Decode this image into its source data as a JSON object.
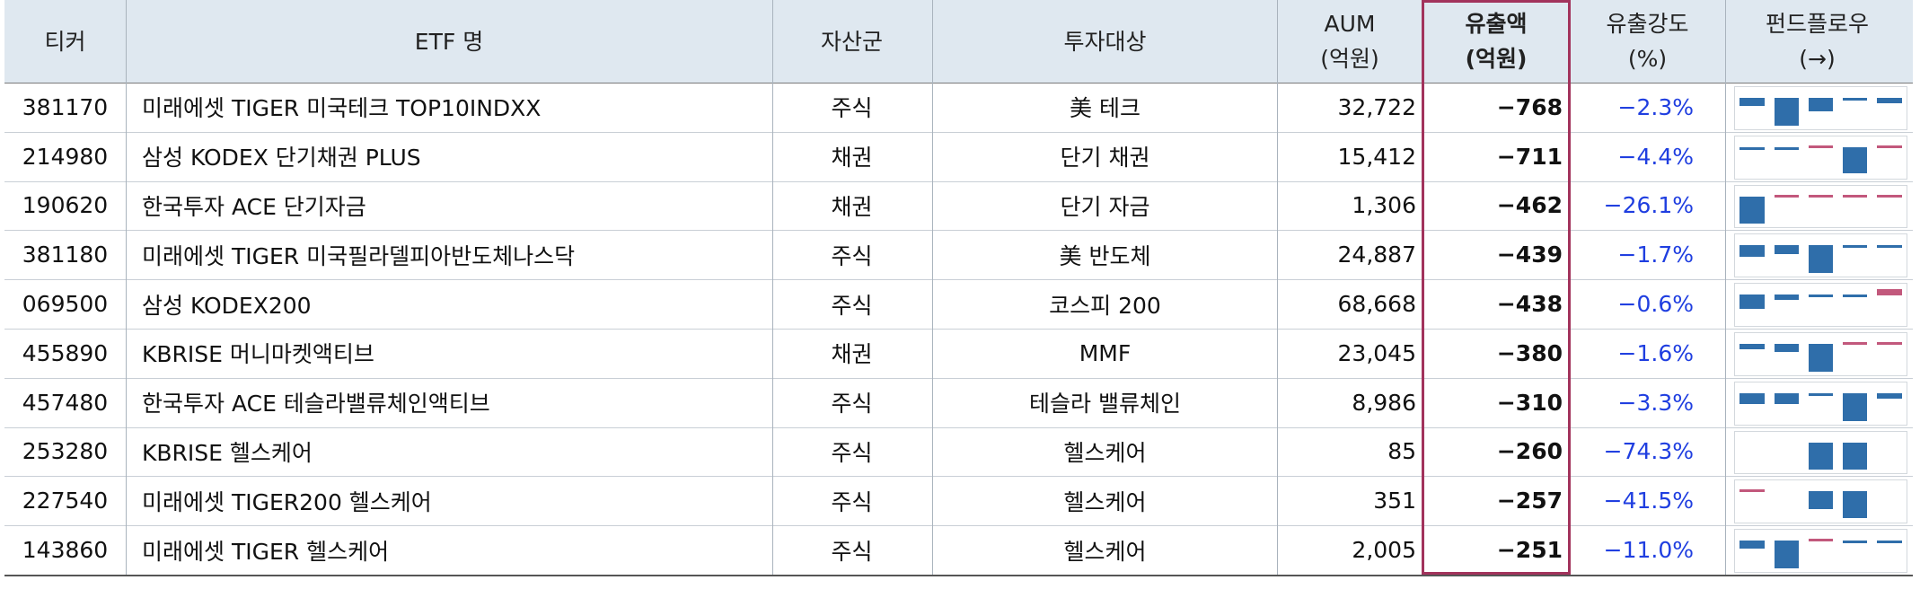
{
  "columns": [
    {
      "line1": "티커",
      "line2": ""
    },
    {
      "line1": "ETF 명",
      "line2": ""
    },
    {
      "line1": "자산군",
      "line2": ""
    },
    {
      "line1": "투자대상",
      "line2": ""
    },
    {
      "line1": "AUM",
      "line2": "(억원)"
    },
    {
      "line1": "유출액",
      "line2": "(억원)"
    },
    {
      "line1": "유출강도",
      "line2": "(%)"
    },
    {
      "line1": "펀드플로우",
      "line2": "(→)"
    }
  ],
  "colors": {
    "header_bg": "#dfe8f0",
    "highlight_border": "#a2335c",
    "intensity_text": "#1f3ee0",
    "flow_out": "#2f6eaa",
    "flow_in": "#c2587c"
  },
  "rows": [
    {
      "ticker": "381170",
      "name": "미래에셋 TIGER 미국테크 TOP10INDXX",
      "asset": "주식",
      "target": "美 테크",
      "aum": "32,722",
      "outflow": "-768",
      "intensity": "-2.3%",
      "flow": [
        -0.3,
        -1.0,
        -0.5,
        -0.05,
        -0.2
      ]
    },
    {
      "ticker": "214980",
      "name": "삼성 KODEX 단기채권 PLUS",
      "asset": "채권",
      "target": "단기 채권",
      "aum": "15,412",
      "outflow": "-711",
      "intensity": "-4.4%",
      "flow": [
        -0.05,
        -0.05,
        0.05,
        -0.95,
        0.05
      ]
    },
    {
      "ticker": "190620",
      "name": "한국투자 ACE 단기자금",
      "asset": "채권",
      "target": "단기 자금",
      "aum": "1,306",
      "outflow": "-462",
      "intensity": "-26.1%",
      "flow": [
        -1.0,
        0.05,
        0.05,
        0.05,
        0.05
      ]
    },
    {
      "ticker": "381180",
      "name": "미래에셋 TIGER 미국필라델피아반도체나스닥",
      "asset": "주식",
      "target": "美 반도체",
      "aum": "24,887",
      "outflow": "-439",
      "intensity": "-1.7%",
      "flow": [
        -0.4,
        -0.3,
        -1.0,
        -0.05,
        -0.05
      ]
    },
    {
      "ticker": "069500",
      "name": "삼성 KODEX200",
      "asset": "주식",
      "target": "코스피 200",
      "aum": "68,668",
      "outflow": "-438",
      "intensity": "-0.6%",
      "flow": [
        -0.5,
        -0.2,
        -0.05,
        -0.05,
        0.5
      ]
    },
    {
      "ticker": "455890",
      "name": "KBRISE 머니마켓액티브",
      "asset": "채권",
      "target": "MMF",
      "aum": "23,045",
      "outflow": "-380",
      "intensity": "-1.6%",
      "flow": [
        -0.2,
        -0.3,
        -1.0,
        0.05,
        0.05
      ]
    },
    {
      "ticker": "457480",
      "name": "한국투자 ACE 테슬라밸류체인액티브",
      "asset": "주식",
      "target": "테슬라 밸류체인",
      "aum": "8,986",
      "outflow": "-310",
      "intensity": "-3.3%",
      "flow": [
        -0.4,
        -0.4,
        -0.05,
        -1.0,
        -0.2
      ]
    },
    {
      "ticker": "253280",
      "name": "KBRISE 헬스케어",
      "asset": "주식",
      "target": "헬스케어",
      "aum": "85",
      "outflow": "-260",
      "intensity": "-74.3%",
      "flow": [
        0,
        0,
        -1.0,
        -1.0,
        0
      ]
    },
    {
      "ticker": "227540",
      "name": "미래에셋 TIGER200 헬스케어",
      "asset": "주식",
      "target": "헬스케어",
      "aum": "351",
      "outflow": "-257",
      "intensity": "-41.5%",
      "flow": [
        0.05,
        0,
        -0.65,
        -0.95,
        0
      ]
    },
    {
      "ticker": "143860",
      "name": "미래에셋 TIGER 헬스케어",
      "asset": "주식",
      "target": "헬스케어",
      "aum": "2,005",
      "outflow": "-251",
      "intensity": "-11.0%",
      "flow": [
        -0.3,
        -1.0,
        0.05,
        -0.05,
        -0.05
      ]
    }
  ]
}
